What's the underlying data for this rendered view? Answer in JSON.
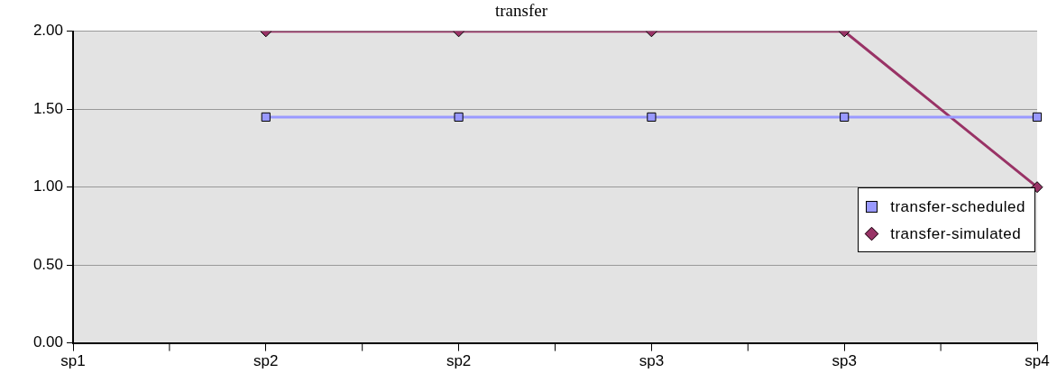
{
  "chart_data": {
    "type": "line",
    "title": "transfer",
    "categories": [
      "sp1",
      "sp2",
      "sp2",
      "sp3",
      "sp3",
      "sp4"
    ],
    "series": [
      {
        "name": "transfer-scheduled",
        "color": "#9999ff",
        "marker": "square",
        "values": [
          null,
          1.45,
          1.45,
          1.45,
          1.45,
          1.45
        ]
      },
      {
        "name": "transfer-simulated",
        "color": "#993366",
        "marker": "diamond",
        "values": [
          null,
          2,
          2,
          2,
          2,
          1
        ]
      }
    ],
    "ylim": [
      0,
      2
    ],
    "yticks": [
      {
        "value": 0,
        "label": "0.00"
      },
      {
        "value": 0.5,
        "label": "0.50"
      },
      {
        "value": 1,
        "label": "1.00"
      },
      {
        "value": 1.5,
        "label": "1.50"
      },
      {
        "value": 2,
        "label": "2.00"
      }
    ],
    "grid": "y",
    "legend": "right"
  }
}
